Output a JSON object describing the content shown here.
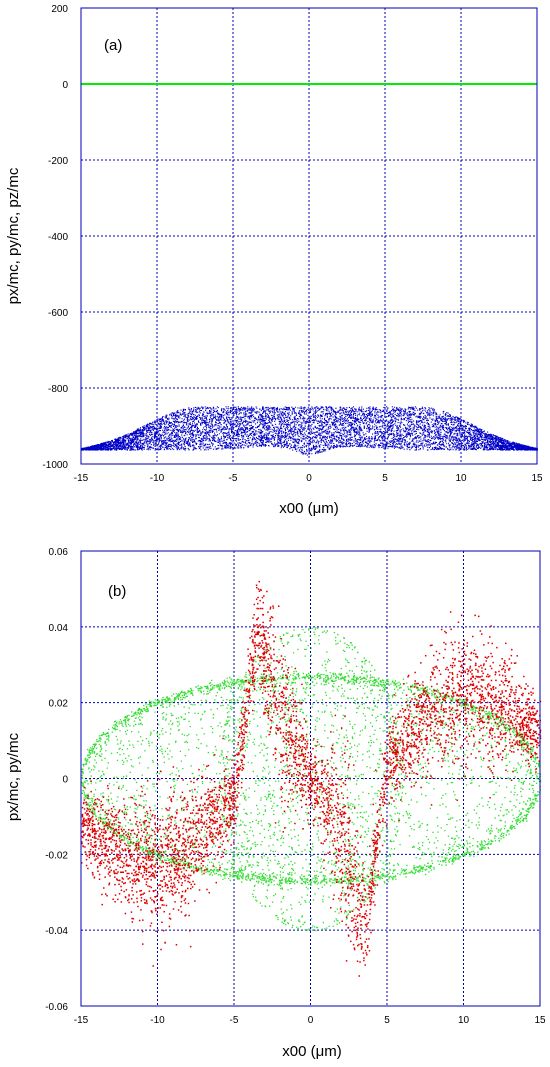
{
  "chart_data": [
    {
      "type": "scatter",
      "panel_label": "(a)",
      "xlabel": "x00 (μm)",
      "ylabel": "px/mc, py/mc, pz/mc",
      "xlim": [
        -15,
        15
      ],
      "ylim": [
        -1000,
        200
      ],
      "x_ticks": [
        -15,
        -10,
        -5,
        0,
        5,
        10,
        15
      ],
      "y_ticks": [
        -1000,
        -800,
        -600,
        -400,
        -200,
        0,
        200
      ],
      "grid": true,
      "colors": {
        "axis": "#0000b4",
        "grid": "#0000b4"
      },
      "series": [
        {
          "color": "#00ee00",
          "kind": "line",
          "x": [
            -15,
            15
          ],
          "y": [
            0,
            0
          ]
        },
        {
          "color": "#0000c8",
          "kind": "band",
          "x": [
            -15,
            -14,
            -13,
            -12,
            -11,
            -10,
            -9,
            -8,
            -7,
            -6,
            -5,
            -4,
            -3,
            -2,
            -1,
            0,
            1,
            2,
            3,
            4,
            5,
            6,
            7,
            8,
            9,
            10,
            11,
            12,
            13,
            14,
            15
          ],
          "upper": [
            -958,
            -948,
            -936,
            -920,
            -900,
            -880,
            -862,
            -850,
            -848,
            -848,
            -848,
            -848,
            -848,
            -848,
            -848,
            -848,
            -848,
            -848,
            -848,
            -848,
            -848,
            -848,
            -848,
            -850,
            -862,
            -880,
            -900,
            -920,
            -936,
            -948,
            -958
          ],
          "lower": [
            -962,
            -962,
            -962,
            -962,
            -962,
            -962,
            -962,
            -962,
            -962,
            -960,
            -958,
            -955,
            -952,
            -955,
            -965,
            -978,
            -965,
            -955,
            -952,
            -955,
            -958,
            -960,
            -962,
            -962,
            -962,
            -962,
            -962,
            -962,
            -962,
            -962,
            -962
          ],
          "points": 9000
        }
      ]
    },
    {
      "type": "scatter",
      "panel_label": "(b)",
      "xlabel": "x00 (μm)",
      "ylabel": "px/mc, py/mc",
      "xlim": [
        -15,
        15
      ],
      "ylim": [
        -0.06,
        0.06
      ],
      "x_ticks": [
        -15,
        -10,
        -5,
        0,
        5,
        10,
        15
      ],
      "y_ticks": [
        -0.06,
        -0.04,
        -0.02,
        0,
        0.02,
        0.04,
        0.06
      ],
      "grid": true,
      "colors": {
        "axis": "#0000b4",
        "grid": "#0000b4"
      },
      "series": [
        {
          "color": "#33dd33",
          "kind": "lens",
          "amplitude": 0.027,
          "x_range": [
            -15,
            15
          ],
          "center_lobe": {
            "x_range": [
              -6,
              6
            ],
            "peak": 0.04
          },
          "points": 7000
        },
        {
          "color": "#dd0000",
          "kind": "s-wave",
          "x": [
            -15,
            -12,
            -10,
            -8,
            -5,
            -3.5,
            -2,
            0,
            2,
            3.5,
            5,
            8,
            10,
            12,
            15
          ],
          "y": [
            -0.012,
            -0.02,
            -0.022,
            -0.018,
            -0.005,
            0.04,
            0.015,
            0,
            -0.015,
            -0.04,
            0.005,
            0.018,
            0.022,
            0.02,
            0.012
          ],
          "spread": [
            0.004,
            0.008,
            0.009,
            0.008,
            0.005,
            0.006,
            0.012,
            0.004,
            0.012,
            0.006,
            0.005,
            0.008,
            0.009,
            0.008,
            0.004
          ],
          "points": 4500
        }
      ]
    }
  ]
}
